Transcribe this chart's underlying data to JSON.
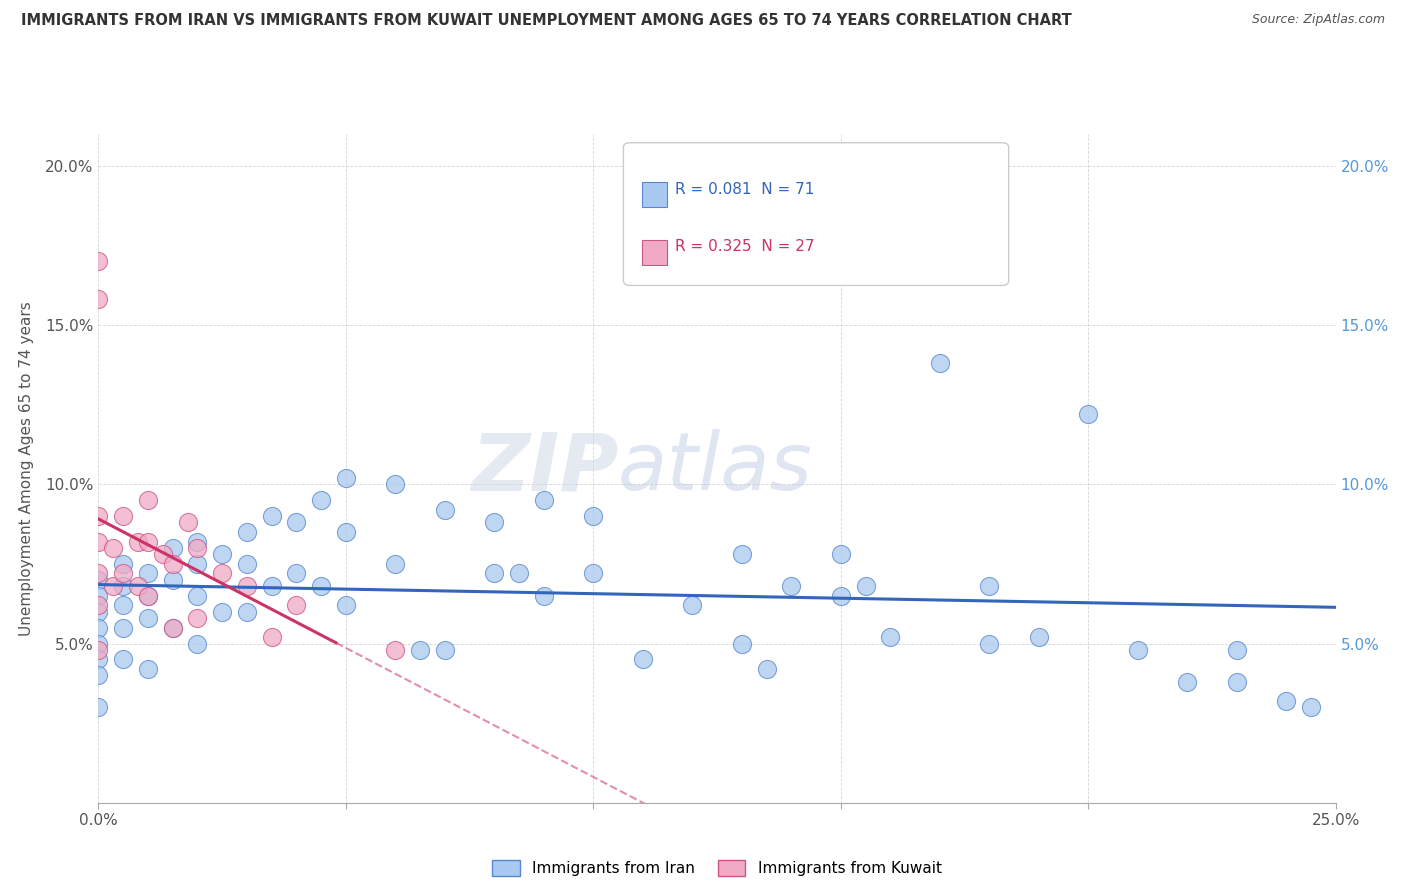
{
  "title": "IMMIGRANTS FROM IRAN VS IMMIGRANTS FROM KUWAIT UNEMPLOYMENT AMONG AGES 65 TO 74 YEARS CORRELATION CHART",
  "source": "Source: ZipAtlas.com",
  "ylabel": "Unemployment Among Ages 65 to 74 years",
  "xlim": [
    0.0,
    0.25
  ],
  "ylim": [
    0.0,
    0.21
  ],
  "x_ticks": [
    0.0,
    0.05,
    0.1,
    0.15,
    0.2,
    0.25
  ],
  "x_tick_labels_show": [
    "0.0%",
    "",
    "",
    "",
    "",
    "25.0%"
  ],
  "y_ticks": [
    0.0,
    0.05,
    0.1,
    0.15,
    0.2
  ],
  "y_tick_labels_left": [
    "",
    "5.0%",
    "10.0%",
    "15.0%",
    "20.0%"
  ],
  "y_tick_labels_right": [
    "",
    "5.0%",
    "10.0%",
    "15.0%",
    "20.0%"
  ],
  "iran_R": "0.081",
  "iran_N": "71",
  "kuwait_R": "0.325",
  "kuwait_N": "27",
  "iran_color": "#aac9f0",
  "iran_edge_color": "#5588cc",
  "kuwait_color": "#f0aac4",
  "kuwait_edge_color": "#cc5588",
  "iran_line_color": "#3366bb",
  "kuwait_line_color": "#cc3366",
  "watermark_zip": "ZIP",
  "watermark_atlas": "atlas",
  "iran_points_x": [
    0.0,
    0.0,
    0.0,
    0.0,
    0.0,
    0.0,
    0.0,
    0.0,
    0.005,
    0.005,
    0.005,
    0.005,
    0.005,
    0.01,
    0.01,
    0.01,
    0.01,
    0.015,
    0.015,
    0.015,
    0.02,
    0.02,
    0.02,
    0.02,
    0.025,
    0.025,
    0.03,
    0.03,
    0.03,
    0.035,
    0.035,
    0.04,
    0.04,
    0.045,
    0.045,
    0.05,
    0.05,
    0.05,
    0.06,
    0.06,
    0.065,
    0.07,
    0.07,
    0.08,
    0.08,
    0.09,
    0.09,
    0.1,
    0.1,
    0.11,
    0.12,
    0.13,
    0.13,
    0.14,
    0.15,
    0.15,
    0.16,
    0.17,
    0.18,
    0.18,
    0.19,
    0.2,
    0.21,
    0.22,
    0.23,
    0.23,
    0.24,
    0.245,
    0.135,
    0.155,
    0.085
  ],
  "iran_points_y": [
    0.07,
    0.065,
    0.06,
    0.055,
    0.05,
    0.045,
    0.04,
    0.03,
    0.075,
    0.068,
    0.062,
    0.055,
    0.045,
    0.072,
    0.065,
    0.058,
    0.042,
    0.08,
    0.07,
    0.055,
    0.082,
    0.075,
    0.065,
    0.05,
    0.078,
    0.06,
    0.085,
    0.075,
    0.06,
    0.09,
    0.068,
    0.088,
    0.072,
    0.095,
    0.068,
    0.102,
    0.085,
    0.062,
    0.1,
    0.075,
    0.048,
    0.092,
    0.048,
    0.088,
    0.072,
    0.095,
    0.065,
    0.09,
    0.072,
    0.045,
    0.062,
    0.078,
    0.05,
    0.068,
    0.078,
    0.065,
    0.052,
    0.138,
    0.068,
    0.05,
    0.052,
    0.122,
    0.048,
    0.038,
    0.048,
    0.038,
    0.032,
    0.03,
    0.042,
    0.068,
    0.072
  ],
  "kuwait_points_x": [
    0.0,
    0.0,
    0.0,
    0.0,
    0.0,
    0.0,
    0.0,
    0.003,
    0.003,
    0.005,
    0.005,
    0.008,
    0.008,
    0.01,
    0.01,
    0.01,
    0.013,
    0.015,
    0.015,
    0.018,
    0.02,
    0.02,
    0.025,
    0.03,
    0.035,
    0.04,
    0.06
  ],
  "kuwait_points_y": [
    0.17,
    0.158,
    0.09,
    0.082,
    0.072,
    0.062,
    0.048,
    0.08,
    0.068,
    0.09,
    0.072,
    0.082,
    0.068,
    0.095,
    0.082,
    0.065,
    0.078,
    0.075,
    0.055,
    0.088,
    0.08,
    0.058,
    0.072,
    0.068,
    0.052,
    0.062,
    0.048
  ],
  "kuwait_line_x_solid_end": 0.048,
  "kuwait_line_x_dashed_end": 0.16
}
